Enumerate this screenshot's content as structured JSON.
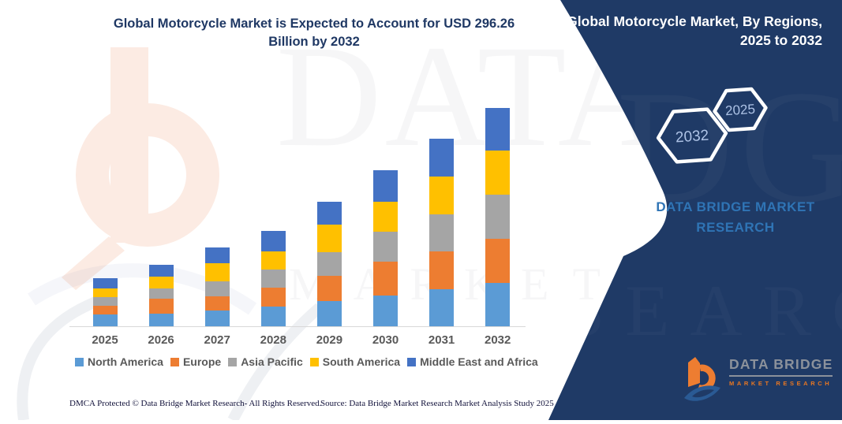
{
  "header": {
    "title": "Global Motorcycle Market is Expected to Account for USD 296.26 Billion by 2032"
  },
  "chart_data": {
    "type": "bar",
    "stacked": true,
    "title": "Global Motorcycle Market is Expected to Account for USD 296.26 Billion by 2032",
    "units": "USD Billion",
    "values_estimated_from_pixels": true,
    "categories": [
      "2025",
      "2026",
      "2027",
      "2028",
      "2029",
      "2030",
      "2031",
      "2032"
    ],
    "series": [
      {
        "name": "North America",
        "color": "#5b9bd5",
        "values": [
          16.0,
          16.8,
          21.1,
          27.1,
          34.2,
          41.4,
          50.3,
          58.8
        ]
      },
      {
        "name": "Europe",
        "color": "#ed7d31",
        "values": [
          11.8,
          20.3,
          19.6,
          24.9,
          34.6,
          46.3,
          51.0,
          60.2
        ]
      },
      {
        "name": "Asia Pacific",
        "color": "#a5a5a5",
        "values": [
          12.1,
          14.2,
          20.3,
          24.9,
          32.1,
          41.0,
          50.6,
          59.6
        ]
      },
      {
        "name": "South America",
        "color": "#ffc000",
        "values": [
          11.8,
          16.0,
          24.3,
          24.9,
          37.4,
          40.3,
          51.0,
          59.6
        ]
      },
      {
        "name": "Middle East and Africa",
        "color": "#4472c4",
        "values": [
          13.6,
          16.0,
          21.4,
          27.8,
          30.7,
          42.8,
          51.3,
          58.06
        ]
      }
    ],
    "estimated_totals": [
      65.3,
      83.3,
      106.7,
      129.6,
      169.0,
      211.8,
      254.2,
      296.26
    ],
    "legend_position": "bottom",
    "grid": false,
    "y_axis_visible": false,
    "ylim": [
      0,
      320
    ]
  },
  "panel": {
    "title_line1": "Global Motorcycle Market, By Regions,",
    "title_line2": "2025 to 2032",
    "hexagons": [
      {
        "label": "2032"
      },
      {
        "label": "2025"
      }
    ],
    "brand_line1": "DATA BRIDGE MARKET",
    "brand_line2": "RESEARCH",
    "colors": {
      "panel": "#1f3a66",
      "brand_text": "#2f74b5",
      "hexagon_text": "#aec3e6"
    }
  },
  "logo": {
    "name": "DATA BRIDGE",
    "tagline": "MARKET RESEARCH"
  },
  "watermark": {
    "big": "DATA BRIDGE",
    "sub": "MARKET RESEARCH",
    "panel_big": "IDGE",
    "panel_sub": "SEARCH"
  },
  "footer": {
    "left": "DMCA Protected © Data Bridge Market Research-  All Rights Reserved.",
    "right": "Source: Data Bridge Market Research  Market Analysis Study 2025"
  }
}
